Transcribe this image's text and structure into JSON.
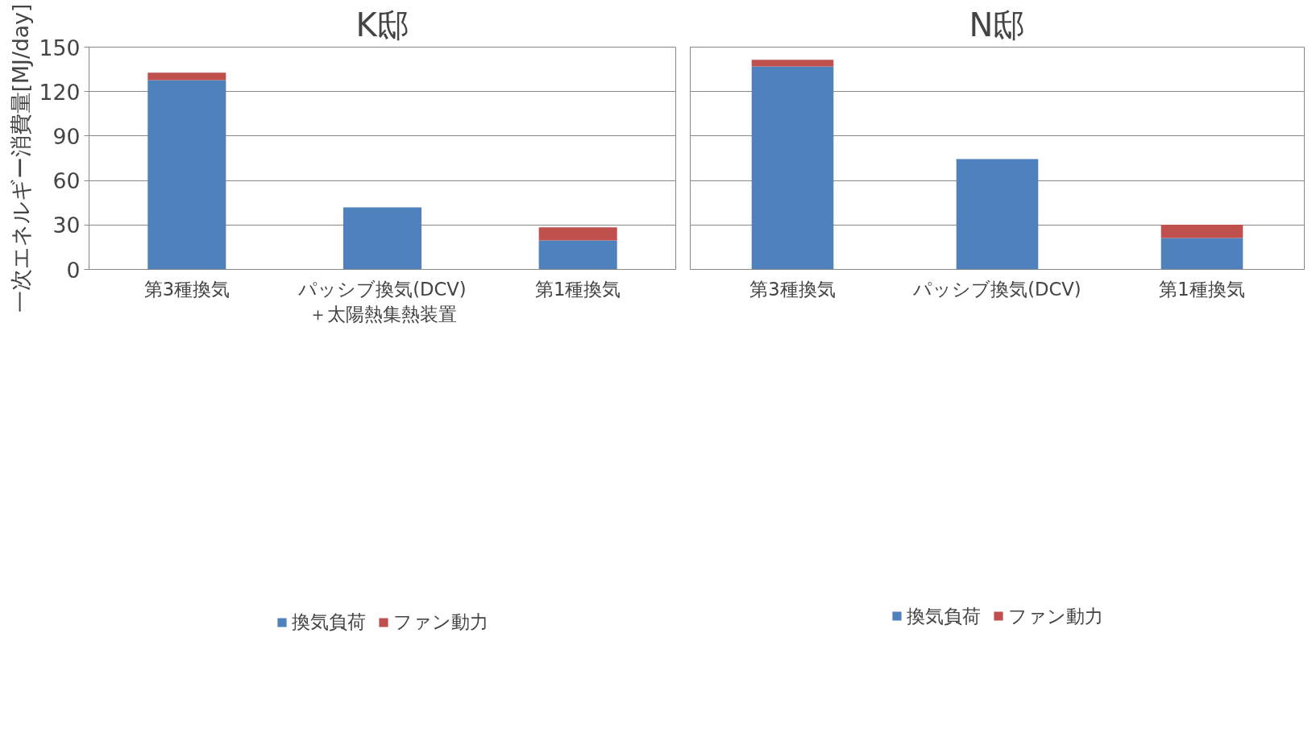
{
  "chart_data": [
    {
      "type": "bar",
      "title": "K邸",
      "ylabel": "一次エネルギー消費量[MJ/day]",
      "categories": [
        "第3種換気",
        "パッシブ換気(DCV)\n＋太陽熱集熱装置",
        "第1種換気"
      ],
      "stacked": true,
      "series": [
        {
          "name": "換気負荷",
          "color": "#4f81bd",
          "values": [
            127.7,
            41.8,
            19.5
          ]
        },
        {
          "name": "ファン動力",
          "color": "#c0504d",
          "values": [
            5.1,
            null,
            8.9
          ]
        }
      ],
      "ylim": [
        0,
        150
      ],
      "yticks": [
        0,
        30,
        60,
        90,
        120,
        150
      ],
      "grid": "y",
      "legend": "bottom"
    },
    {
      "type": "bar",
      "title": "N邸",
      "categories": [
        "第3種換気",
        "パッシブ換気(DCV)",
        "第1種換気"
      ],
      "stacked": true,
      "series": [
        {
          "name": "換気負荷",
          "color": "#4f81bd",
          "values": [
            136.9,
            74.5,
            21.2
          ]
        },
        {
          "name": "ファン動力",
          "color": "#c0504d",
          "values": [
            4.6,
            null,
            8.9
          ]
        }
      ],
      "ylim": [
        0,
        150
      ],
      "yticks": [
        0,
        30,
        60,
        90,
        120,
        150
      ],
      "grid": "y",
      "legend": "bottom",
      "tick_labels": "x"
    }
  ]
}
